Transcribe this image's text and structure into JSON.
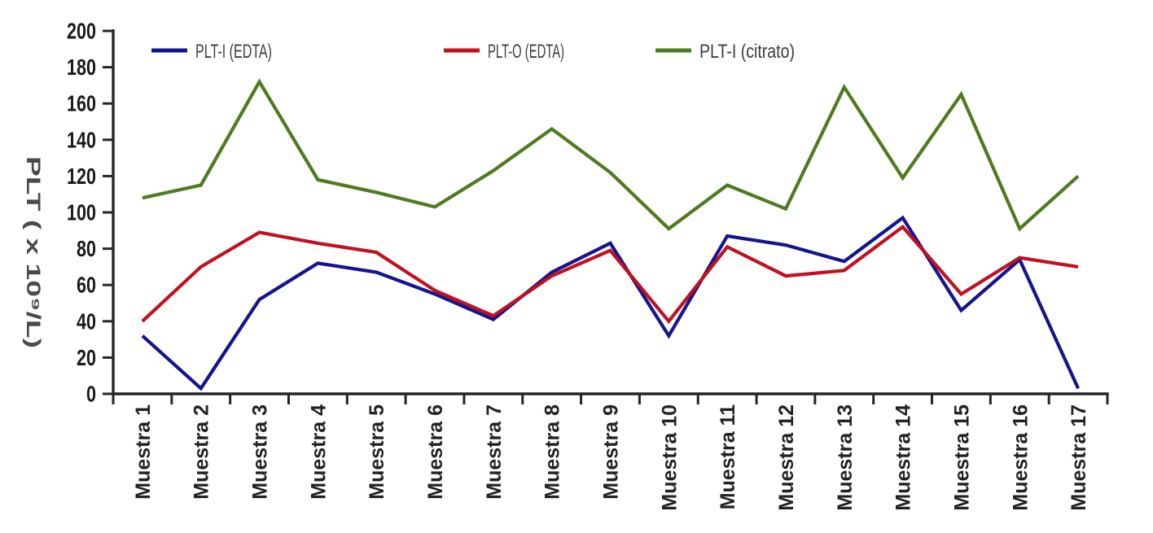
{
  "chart_data": {
    "type": "line",
    "title": "",
    "xlabel": "",
    "ylabel": "PLT ( x 10⁹/L)",
    "categories": [
      "Muestra 1",
      "Muestra 2",
      "Muestra 3",
      "Muestra 4",
      "Muestra 5",
      "Muestra 6",
      "Muestra 7",
      "Muestra 8",
      "Muestra 9",
      "Muestra 10",
      "Muestra 11",
      "Muestra 12",
      "Muestra 13",
      "Muestra 14",
      "Muestra 15",
      "Muestra 16",
      "Muestra 17"
    ],
    "series": [
      {
        "name": "PLT-I (EDTA)",
        "color": "#14148F",
        "values": [
          32,
          3,
          52,
          72,
          67,
          55,
          41,
          67,
          83,
          32,
          87,
          82,
          73,
          97,
          46,
          74,
          3
        ]
      },
      {
        "name": "PLT-O (EDTA)",
        "color": "#C2101E",
        "values": [
          40,
          70,
          89,
          83,
          78,
          57,
          43,
          65,
          79,
          40,
          81,
          65,
          68,
          92,
          55,
          75,
          70
        ]
      },
      {
        "name": "PLT-I (citrato)",
        "color": "#4E7B20",
        "values": [
          108,
          115,
          172,
          118,
          111,
          103,
          123,
          146,
          122,
          91,
          115,
          102,
          169,
          119,
          165,
          91,
          120
        ]
      }
    ],
    "y_axis": {
      "min": 0,
      "max": 200,
      "step": 20
    },
    "y_tick_labels": [
      "0",
      "20",
      "40",
      "60",
      "80",
      "100",
      "120",
      "140",
      "160",
      "180",
      "200"
    ],
    "legend_position": "top",
    "grid": false,
    "colors": {
      "axis": "#24242a",
      "y_tick_label": "#1a1a1a",
      "x_tick_label": "#222222",
      "y_title": "#4a4a4a",
      "legend_text": "#3d3d3d"
    }
  }
}
